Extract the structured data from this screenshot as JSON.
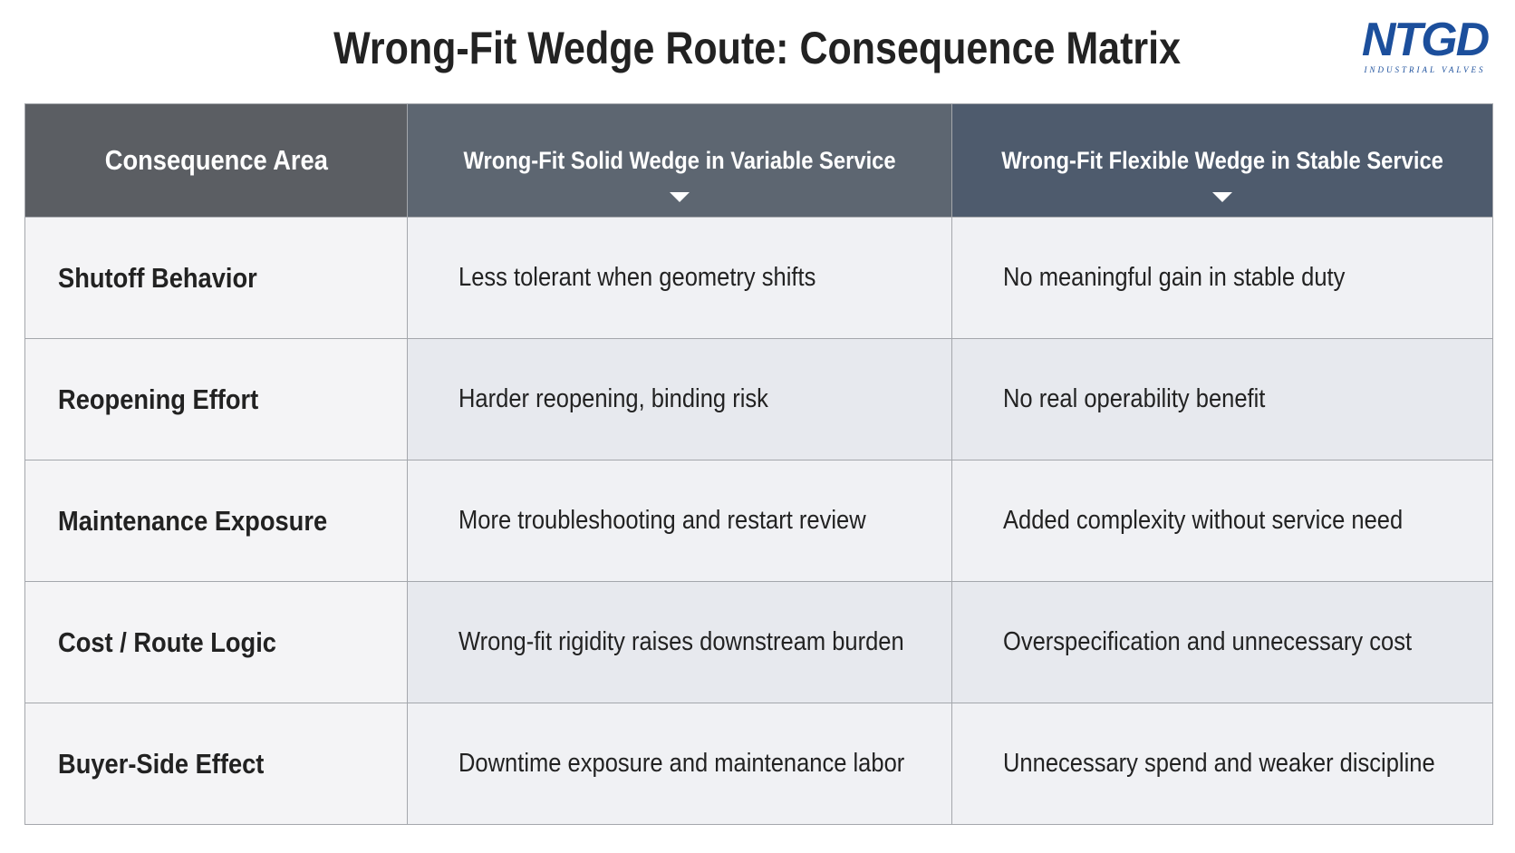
{
  "header": {
    "title": "Wrong-Fit Wedge Route: Consequence Matrix",
    "logo": {
      "mark": "NTGD",
      "tagline": "INDUSTRIAL VALVES"
    }
  },
  "table": {
    "columns": [
      "Consequence Area",
      "Wrong-Fit Solid Wedge in Variable Service",
      "Wrong-Fit Flexible Wedge in Stable Service"
    ],
    "rows": [
      [
        "Shutoff Behavior",
        "Less tolerant when geometry shifts",
        "No meaningful gain in stable duty"
      ],
      [
        "Reopening Effort",
        "Harder reopening, binding risk",
        "No real operability benefit"
      ],
      [
        "Maintenance Exposure",
        "More troubleshooting and restart review",
        "Added complexity without service need"
      ],
      [
        "Cost / Route Logic",
        "Wrong-fit rigidity raises downstream burden",
        "Overspecification and unnecessary cost"
      ],
      [
        "Buyer-Side Effect",
        "Downtime exposure and maintenance labor",
        "Unnecessary spend and weaker discipline"
      ]
    ]
  }
}
